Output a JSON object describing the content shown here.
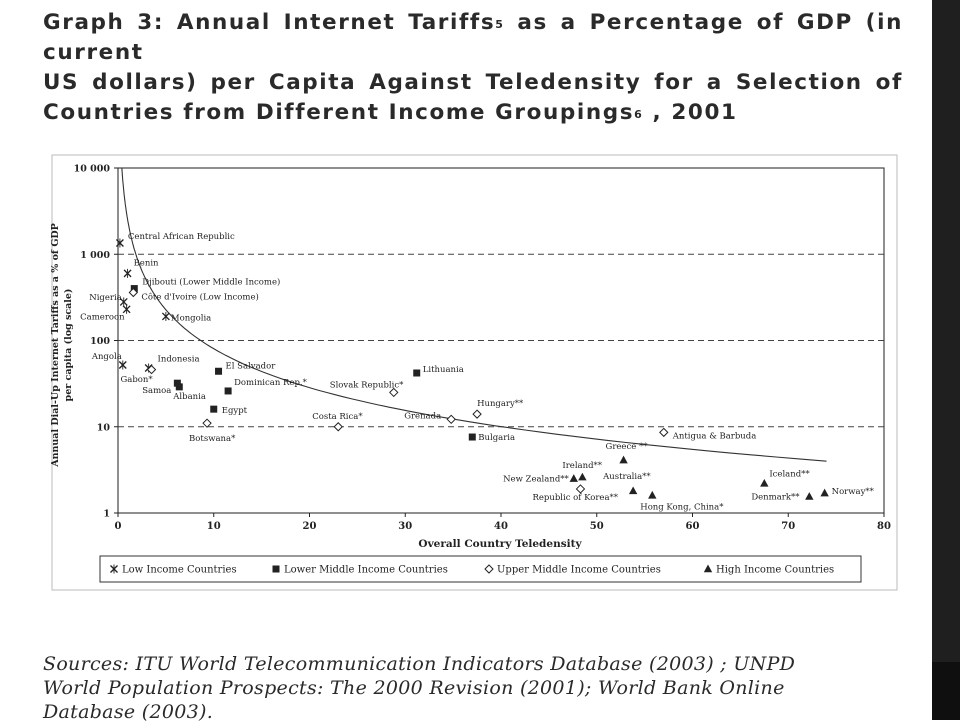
{
  "heading": {
    "graph_label": "Graph 3:",
    "part1": "Annual Internet Tariffs",
    "sup1": "5",
    "part2": "as a Percentage of GDP (in current",
    "line2": "US dollars) per Capita Against Teledensity for a Selection of",
    "part3": "Countries from Different Income Groupings",
    "sup2": "6",
    "part4": ", 2001"
  },
  "chart_data": {
    "type": "scatter",
    "title": "",
    "xlabel": "Overall Country Teledensity",
    "ylabel_lines": [
      "Annual Dial-Up Internet Tariffs as a % of GDP",
      "per capita (log scale)"
    ],
    "xlim": [
      0,
      80
    ],
    "ylim": [
      1,
      10000
    ],
    "y_scale": "log",
    "x_ticks": [
      0,
      10,
      20,
      30,
      40,
      50,
      60,
      70,
      80
    ],
    "y_ticks": [
      {
        "value": 1,
        "label": "1"
      },
      {
        "value": 10,
        "label": "10"
      },
      {
        "value": 100,
        "label": "100"
      },
      {
        "value": 1000,
        "label": "1 000"
      },
      {
        "value": 10000,
        "label": "10 000"
      }
    ],
    "reference_lines_y": [
      10,
      100,
      1000
    ],
    "legend_position": "bottom",
    "series": [
      {
        "name": "Low Income Countries",
        "marker": "x",
        "points": [
          {
            "label": "Central African Republic",
            "x": 0.2,
            "y": 1350
          },
          {
            "label": "Benin",
            "x": 1.0,
            "y": 600
          },
          {
            "label": "Nigeria",
            "x": 0.6,
            "y": 280
          },
          {
            "label": "Cameroon",
            "x": 0.9,
            "y": 230
          },
          {
            "label": "Mongolia",
            "x": 5.0,
            "y": 190
          },
          {
            "label": "Angola",
            "x": 0.5,
            "y": 52
          },
          {
            "label": "Gabon*",
            "x": 3.2,
            "y": 48
          }
        ]
      },
      {
        "name": "Lower Middle Income Countries",
        "marker": "square",
        "points": [
          {
            "label": "Djibouti (Lower Middle Income)",
            "x": 1.7,
            "y": 400
          },
          {
            "label": "El Salvador",
            "x": 10.5,
            "y": 44
          },
          {
            "label": "Samoa",
            "x": 6.2,
            "y": 32
          },
          {
            "label": "Albania",
            "x": 6.4,
            "y": 29
          },
          {
            "label": "Dominican Rep.*",
            "x": 11.5,
            "y": 26
          },
          {
            "label": "Egypt",
            "x": 10.0,
            "y": 16
          },
          {
            "label": "Lithuania",
            "x": 31.2,
            "y": 42
          },
          {
            "label": "Bulgaria",
            "x": 37.0,
            "y": 7.6
          }
        ]
      },
      {
        "name": "Upper Middle Income Countries",
        "marker": "diamond",
        "points": [
          {
            "label": "Côte d'Ivoire (Low Income)",
            "x": 1.6,
            "y": 360
          },
          {
            "label": "Indonesia",
            "x": 3.5,
            "y": 46
          },
          {
            "label": "Botswana*",
            "x": 9.3,
            "y": 11
          },
          {
            "label": "Costa Rica*",
            "x": 23.0,
            "y": 10
          },
          {
            "label": "Slovak Republic*",
            "x": 28.8,
            "y": 25
          },
          {
            "label": "Grenada",
            "x": 34.8,
            "y": 12.2
          },
          {
            "label": "Hungary**",
            "x": 37.5,
            "y": 14
          },
          {
            "label": "Antigua & Barbuda",
            "x": 57.0,
            "y": 8.6
          },
          {
            "label": "Republic of Korea**",
            "x": 48.3,
            "y": 1.9
          }
        ]
      },
      {
        "name": "High Income Countries",
        "marker": "triangle",
        "points": [
          {
            "label": "Greece **",
            "x": 52.8,
            "y": 4.1
          },
          {
            "label": "Ireland**",
            "x": 48.5,
            "y": 2.6
          },
          {
            "label": "New Zealand**",
            "x": 47.6,
            "y": 2.5
          },
          {
            "label": "Australia**",
            "x": 53.8,
            "y": 1.8
          },
          {
            "label": "Hong Kong, China*",
            "x": 55.8,
            "y": 1.6
          },
          {
            "label": "Iceland**",
            "x": 67.5,
            "y": 2.2
          },
          {
            "label": "Denmark**",
            "x": 72.2,
            "y": 1.55
          },
          {
            "label": "Norway**",
            "x": 73.8,
            "y": 1.7
          }
        ]
      }
    ],
    "trend_line": {
      "type": "power",
      "a": 2540,
      "b": -1.5,
      "x_range": [
        0.2,
        74
      ]
    }
  },
  "sources": {
    "line1": "Sources: ITU World Telecommunication Indicators Database (2003) ; UNPD",
    "line2": "World Population Prospects: The 2000 Revision (2001); World Bank Online",
    "line3": "Database (2003)."
  },
  "colors": {
    "ink": "#222222",
    "sidebar": "#1f1f1f"
  }
}
